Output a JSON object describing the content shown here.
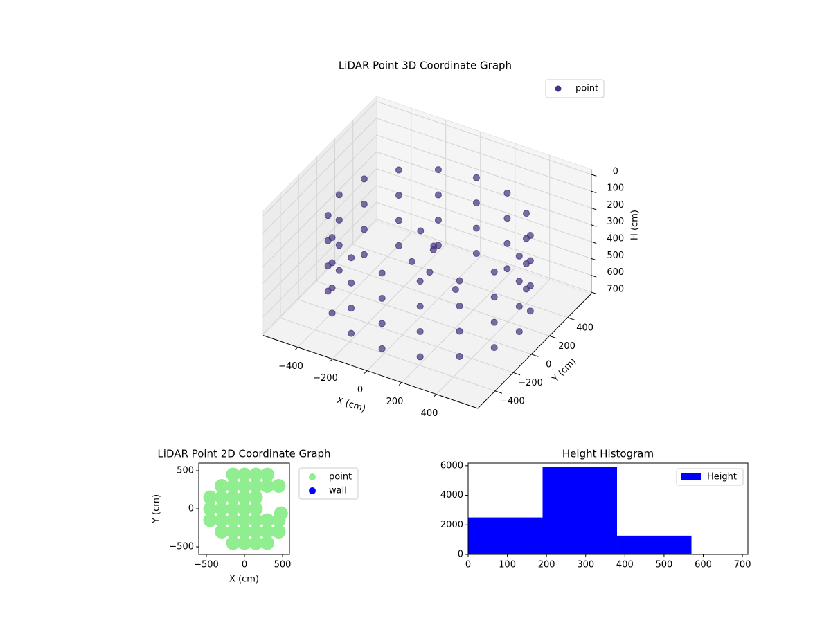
{
  "chart_data": [
    {
      "type": "scatter3d",
      "title": "LiDAR Point 3D Coordinate Graph",
      "xlabel": "X (cm)",
      "ylabel": "Y (cm)",
      "zlabel": "H (cm)",
      "legend": "upper right",
      "series": [
        {
          "name": "point",
          "color": "#46327e",
          "x": [
            570,
            570,
            570,
            570,
            530,
            530,
            530,
            530,
            418,
            418,
            418,
            418,
            249,
            249,
            249,
            249,
            50,
            50,
            50,
            50,
            -149,
            -149,
            -149,
            -149,
            -318,
            -318,
            -318,
            -318,
            -430,
            -430,
            -430,
            -430,
            -470,
            -470,
            -470,
            -470,
            -430,
            -430,
            -430,
            -430,
            -318,
            -318,
            -318,
            -318,
            -149,
            -149,
            -149,
            -149,
            50,
            50,
            50,
            50,
            249,
            249,
            249,
            249,
            418,
            418,
            418,
            418,
            530,
            530,
            530,
            530,
            0,
            50,
            -50,
            100,
            0,
            150
          ],
          "y": [
            0,
            0,
            0,
            0,
            199,
            199,
            199,
            199,
            368,
            368,
            368,
            368,
            480,
            480,
            480,
            480,
            520,
            520,
            520,
            520,
            480,
            480,
            480,
            480,
            368,
            368,
            368,
            368,
            199,
            199,
            199,
            199,
            0,
            0,
            0,
            0,
            -199,
            -199,
            -199,
            -199,
            -368,
            -368,
            -368,
            -368,
            -480,
            -480,
            -480,
            -480,
            -520,
            -520,
            -520,
            -520,
            -480,
            -480,
            -480,
            -480,
            -368,
            -368,
            -368,
            -368,
            -199,
            -199,
            -199,
            -199,
            0,
            50,
            0,
            -50,
            100,
            100
          ],
          "z": [
            150,
            300,
            450,
            600,
            150,
            300,
            450,
            600,
            150,
            300,
            450,
            600,
            150,
            300,
            450,
            600,
            150,
            300,
            450,
            600,
            150,
            300,
            450,
            600,
            150,
            300,
            450,
            600,
            150,
            300,
            450,
            600,
            150,
            300,
            450,
            600,
            150,
            300,
            450,
            600,
            150,
            300,
            450,
            600,
            150,
            300,
            450,
            600,
            150,
            300,
            450,
            600,
            150,
            300,
            450,
            600,
            150,
            300,
            450,
            600,
            150,
            300,
            450,
            600,
            200,
            300,
            400,
            250,
            500,
            550
          ]
        }
      ],
      "xlim": [
        -600,
        640
      ],
      "ylim": [
        -590,
        660
      ],
      "zlim": [
        -30,
        710
      ],
      "z_inverted": true,
      "xticks": [
        {
          "value": -400,
          "label": "−400"
        },
        {
          "value": -200,
          "label": "−200"
        },
        0,
        200,
        400
      ],
      "yticks": [
        {
          "value": -400,
          "label": "−400"
        },
        {
          "value": -200,
          "label": "−200"
        },
        0,
        200,
        400
      ],
      "zticks": [
        0,
        100,
        200,
        300,
        400,
        500,
        600,
        700
      ],
      "grid": true
    },
    {
      "type": "scatter",
      "title": "LiDAR Point 2D Coordinate Graph",
      "xlabel": "X (cm)",
      "ylabel": "Y (cm)",
      "legend": "outside right",
      "series": [
        {
          "name": "point",
          "color": "#90ee90",
          "x": [
            -450,
            -450,
            -450,
            -300,
            -300,
            -300,
            -300,
            -300,
            -150,
            -150,
            -150,
            -150,
            -150,
            -150,
            -150,
            0,
            0,
            0,
            0,
            0,
            0,
            0,
            150,
            150,
            150,
            150,
            150,
            150,
            150,
            300,
            300,
            300,
            300,
            300,
            450,
            450,
            450,
            480
          ],
          "y": [
            -150,
            0,
            150,
            -300,
            -150,
            0,
            150,
            300,
            -450,
            -300,
            -150,
            0,
            150,
            300,
            450,
            -450,
            -300,
            -150,
            0,
            150,
            300,
            450,
            -450,
            -300,
            -150,
            0,
            150,
            300,
            450,
            -450,
            -300,
            -150,
            300,
            450,
            -300,
            -150,
            300,
            -60
          ]
        },
        {
          "name": "wall",
          "color": "#0000ff",
          "x": [],
          "y": []
        }
      ],
      "xlim": [
        -600,
        591
      ],
      "ylim": [
        -600,
        600
      ],
      "xticks": [
        {
          "value": -500,
          "label": "−500"
        },
        0,
        500
      ],
      "yticks": [
        {
          "value": -500,
          "label": "−500"
        },
        0,
        500
      ]
    },
    {
      "type": "histogram",
      "title": "Height Histogram",
      "name": "Height",
      "color": "#0000ff",
      "legend": "upper right",
      "bins": [
        0,
        190,
        380,
        570,
        714
      ],
      "counts": [
        2500,
        5900,
        1270,
        10
      ],
      "xlim": [
        0,
        714
      ],
      "ylim": [
        0,
        6180
      ],
      "xticks": [
        0,
        100,
        200,
        300,
        400,
        500,
        600,
        700
      ],
      "yticks": [
        0,
        2000,
        4000,
        6000
      ]
    }
  ]
}
